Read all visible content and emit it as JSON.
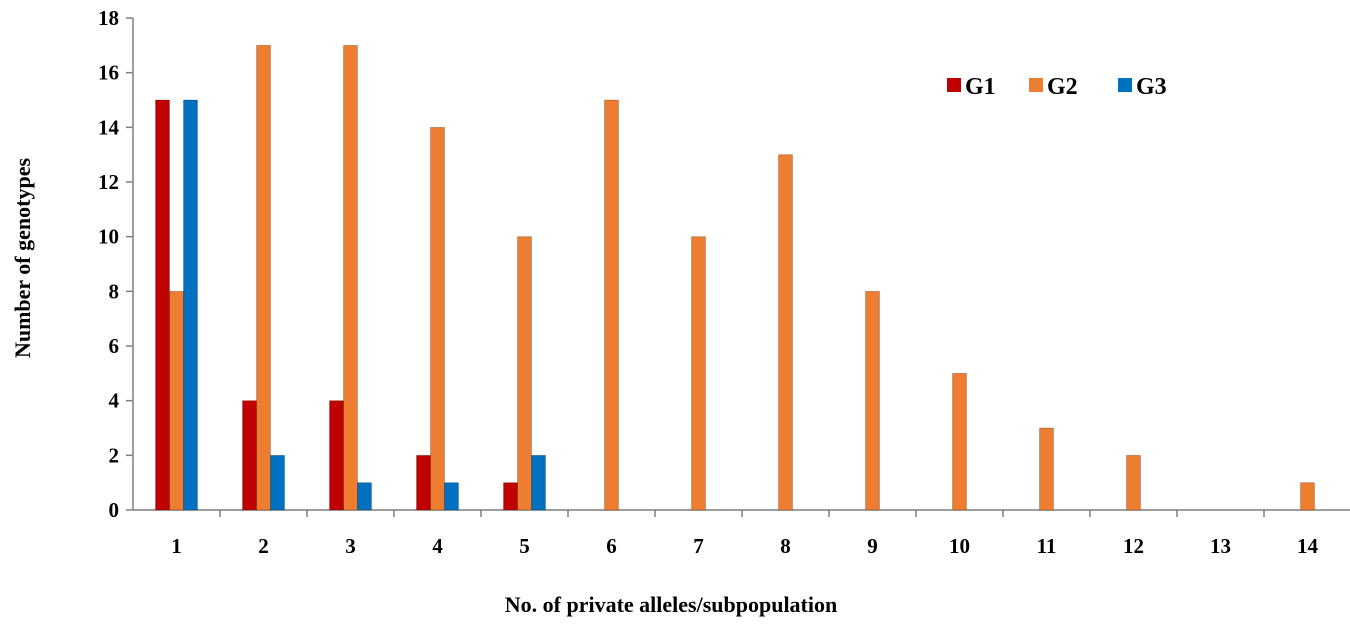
{
  "chart_data": {
    "type": "bar",
    "categories": [
      "1",
      "2",
      "3",
      "4",
      "5",
      "6",
      "7",
      "8",
      "9",
      "10",
      "11",
      "12",
      "13",
      "14"
    ],
    "series": [
      {
        "name": "G1",
        "color": "#C00000",
        "values": [
          15,
          4,
          4,
          2,
          1,
          0,
          0,
          0,
          0,
          0,
          0,
          0,
          0,
          0
        ]
      },
      {
        "name": "G2",
        "color": "#ED7D31",
        "values": [
          8,
          17,
          17,
          14,
          10,
          15,
          10,
          13,
          8,
          5,
          3,
          2,
          0,
          1
        ]
      },
      {
        "name": "G3",
        "color": "#0070C0",
        "values": [
          15,
          2,
          1,
          1,
          2,
          0,
          0,
          0,
          0,
          0,
          0,
          0,
          0,
          0
        ]
      }
    ],
    "xlabel": "No. of private alleles/subpopulation",
    "ylabel": "Number of genotypes",
    "ylim": [
      0,
      18
    ],
    "yticks": [
      0,
      2,
      4,
      6,
      8,
      10,
      12,
      14,
      16,
      18
    ],
    "grid": false,
    "legend_position": "top-right"
  }
}
